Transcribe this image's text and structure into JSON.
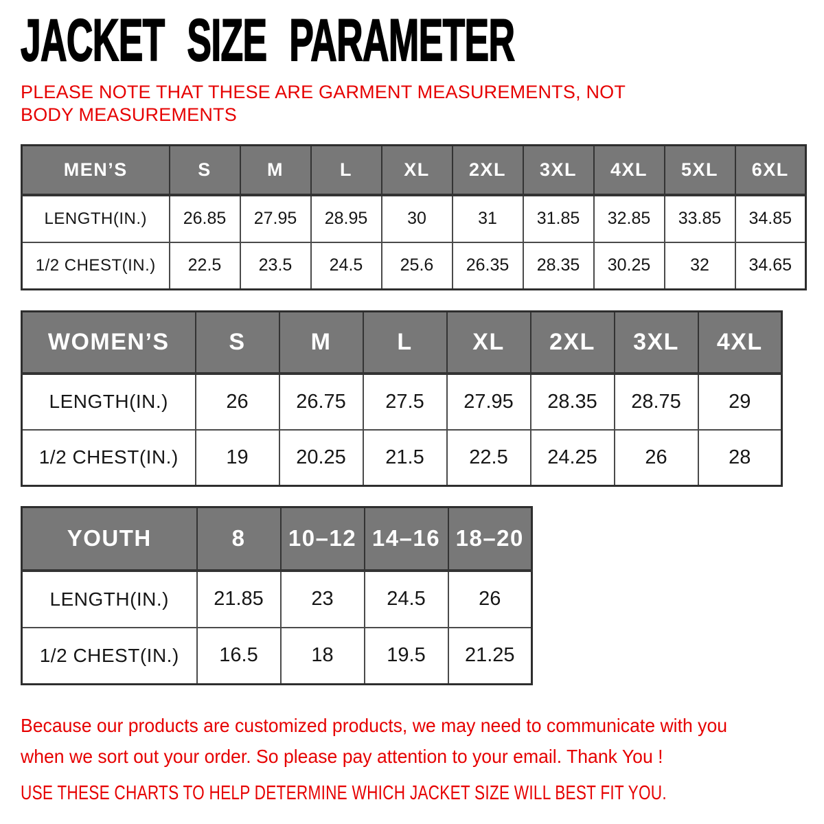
{
  "title": "JACKET SIZE PARAMETER",
  "note": "PLEASE NOTE THAT THESE ARE GARMENT MEASUREMENTS, NOT BODY MEASUREMENTS",
  "labels": {
    "length": "LENGTH(IN.)",
    "chest": "1/2 CHEST(IN.)"
  },
  "tables": {
    "mens": {
      "label": "MEN’S",
      "sizes": [
        "S",
        "M",
        "L",
        "XL",
        "2XL",
        "3XL",
        "4XL",
        "5XL",
        "6XL"
      ],
      "length": [
        "26.85",
        "27.95",
        "28.95",
        "30",
        "31",
        "31.85",
        "32.85",
        "33.85",
        "34.85"
      ],
      "chest": [
        "22.5",
        "23.5",
        "24.5",
        "25.6",
        "26.35",
        "28.35",
        "30.25",
        "32",
        "34.65"
      ]
    },
    "womens": {
      "label": "WOMEN’S",
      "sizes": [
        "S",
        "M",
        "L",
        "XL",
        "2XL",
        "3XL",
        "4XL"
      ],
      "length": [
        "26",
        "26.75",
        "27.5",
        "27.95",
        "28.35",
        "28.75",
        "29"
      ],
      "chest": [
        "19",
        "20.25",
        "21.5",
        "22.5",
        "24.25",
        "26",
        "28"
      ]
    },
    "youth": {
      "label": "YOUTH",
      "sizes": [
        "8",
        "10–12",
        "14–16",
        "18–20"
      ],
      "length": [
        "21.85",
        "23",
        "24.5",
        "26"
      ],
      "chest": [
        "16.5",
        "18",
        "19.5",
        "21.25"
      ]
    }
  },
  "footer": {
    "paragraph": "Because our products are customized products, we may need to communicate with you when we sort out your order. So please pay attention to your email. Thank You !",
    "cta": "USE THESE CHARTS TO HELP DETERMINE WHICH JACKET SIZE WILL BEST FIT YOU."
  },
  "colors": {
    "accent_red": "#e60000",
    "header_gray": "#787878",
    "header_text": "#ffffff",
    "border_dark": "#2e2e2e",
    "title_black": "#000000"
  }
}
